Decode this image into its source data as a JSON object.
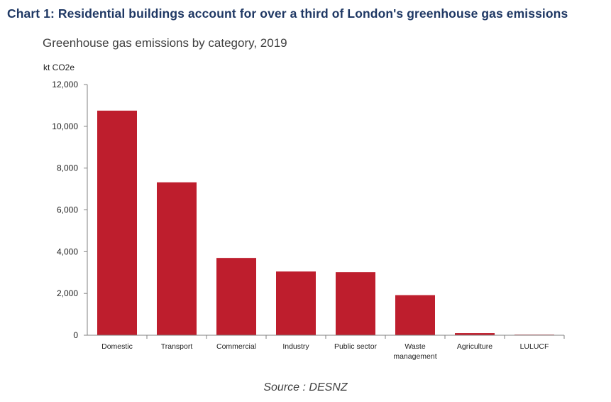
{
  "header": {
    "title": "Chart 1: Residential buildings account for over a third of London's greenhouse gas emissions"
  },
  "colors": {
    "title": "#1f3864",
    "bar": "#be1e2d"
  },
  "chart_data": {
    "type": "bar",
    "title": "Greenhouse gas emissions by category, 2019",
    "ylabel": "kt CO2e",
    "xlabel": "",
    "categories": [
      "Domestic",
      "Transport",
      "Commercial",
      "Industry",
      "Public sector",
      "Waste management",
      "Agriculture",
      "LULUCF"
    ],
    "category_lines": [
      [
        "Domestic"
      ],
      [
        "Transport"
      ],
      [
        "Commercial"
      ],
      [
        "Industry"
      ],
      [
        "Public sector"
      ],
      [
        "Waste",
        "management"
      ],
      [
        "Agriculture"
      ],
      [
        "LULUCF"
      ]
    ],
    "values": [
      10750,
      7320,
      3700,
      3050,
      3020,
      1920,
      100,
      30
    ],
    "ylim": [
      0,
      12000
    ],
    "yticks": [
      0,
      2000,
      4000,
      6000,
      8000,
      10000,
      12000
    ],
    "ytick_labels": [
      "0",
      "2,000",
      "4,000",
      "6,000",
      "8,000",
      "10,000",
      "12,000"
    ],
    "grid": false,
    "legend": "none"
  },
  "footer": {
    "source": "Source : DESNZ"
  }
}
